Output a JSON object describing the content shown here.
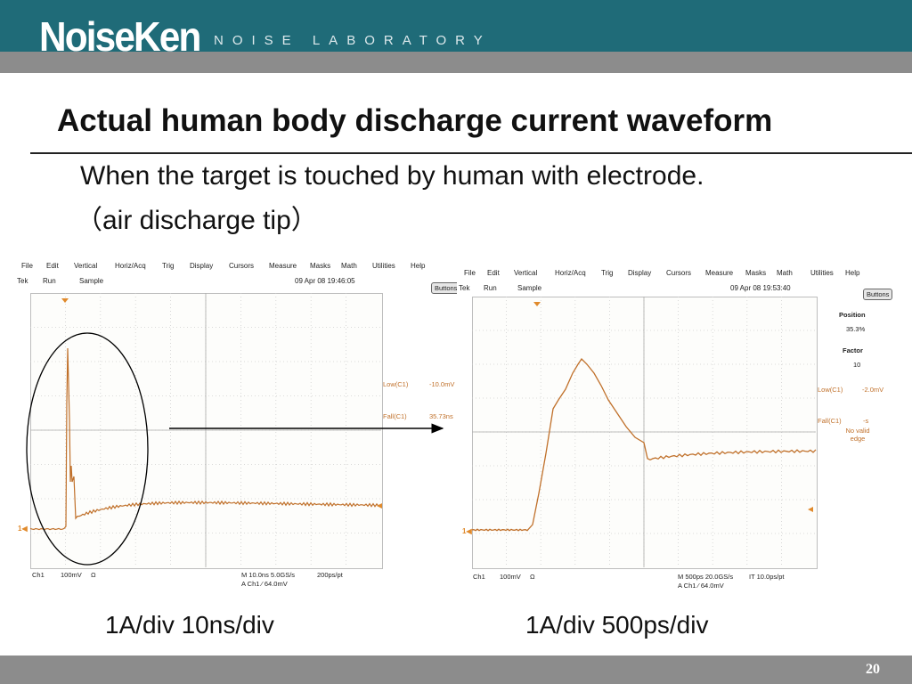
{
  "header": {
    "logo": "NoiseKen",
    "logo_sub": "NOISE LABORATORY"
  },
  "slide": {
    "title": "Actual human body discharge current waveform",
    "subtitle_line1": "When the target is touched by human with electrode.",
    "subtitle_line2": "（air discharge tip）",
    "caption_left": "1A/div   10ns/div",
    "caption_right": "1A/div   500ps/div",
    "page_number": "20"
  },
  "colors": {
    "topbar": "#1f6b78",
    "strip": "#8c8c8c",
    "trace": "#c0702a"
  },
  "scope_left": {
    "menu": [
      "File",
      "Edit",
      "Vertical",
      "Horiz/Acq",
      "Trig",
      "Display",
      "Cursors",
      "Measure",
      "Masks",
      "Math",
      "Utilities",
      "Help"
    ],
    "status_brand": "Tek",
    "status_run": "Run",
    "status_mode": "Sample",
    "timestamp": "09 Apr 08 19:46:05",
    "buttons_label": "Buttons",
    "meas1_label": "Low(C1)",
    "meas1_value": "-10.0mV",
    "meas2_label": "Fall(C1)",
    "meas2_value": "35.73ns",
    "ch_label": "Ch1",
    "ch_scale": "100mV",
    "ch_coupling": "Ω",
    "horiz": "M 10.0ns 5.0GS/s",
    "pts": "200ps/pt",
    "trig": "A  Ch1  ⁄  64.0mV"
  },
  "scope_right": {
    "menu": [
      "File",
      "Edit",
      "Vertical",
      "Horiz/Acq",
      "Trig",
      "Display",
      "Cursors",
      "Measure",
      "Masks",
      "Math",
      "Utilities",
      "Help"
    ],
    "status_brand": "Tek",
    "status_run": "Run",
    "status_mode": "Sample",
    "timestamp": "09 Apr 08 19:53:40",
    "buttons_label": "Buttons",
    "position_label": "Position",
    "position_value": "35.3%",
    "factor_label": "Factor",
    "factor_value": "10",
    "meas1_label": "Low(C1)",
    "meas1_value": "-2.0mV",
    "meas2_label": "Fall(C1)",
    "meas2_value": "-s",
    "meas2_note": "No valid edge",
    "ch_label": "Ch1",
    "ch_scale": "100mV",
    "ch_coupling": "Ω",
    "horiz": "M 500ps 20.0GS/s",
    "pts": "IT 10.0ps/pt",
    "trig": "A  Ch1  ⁄  64.0mV"
  }
}
